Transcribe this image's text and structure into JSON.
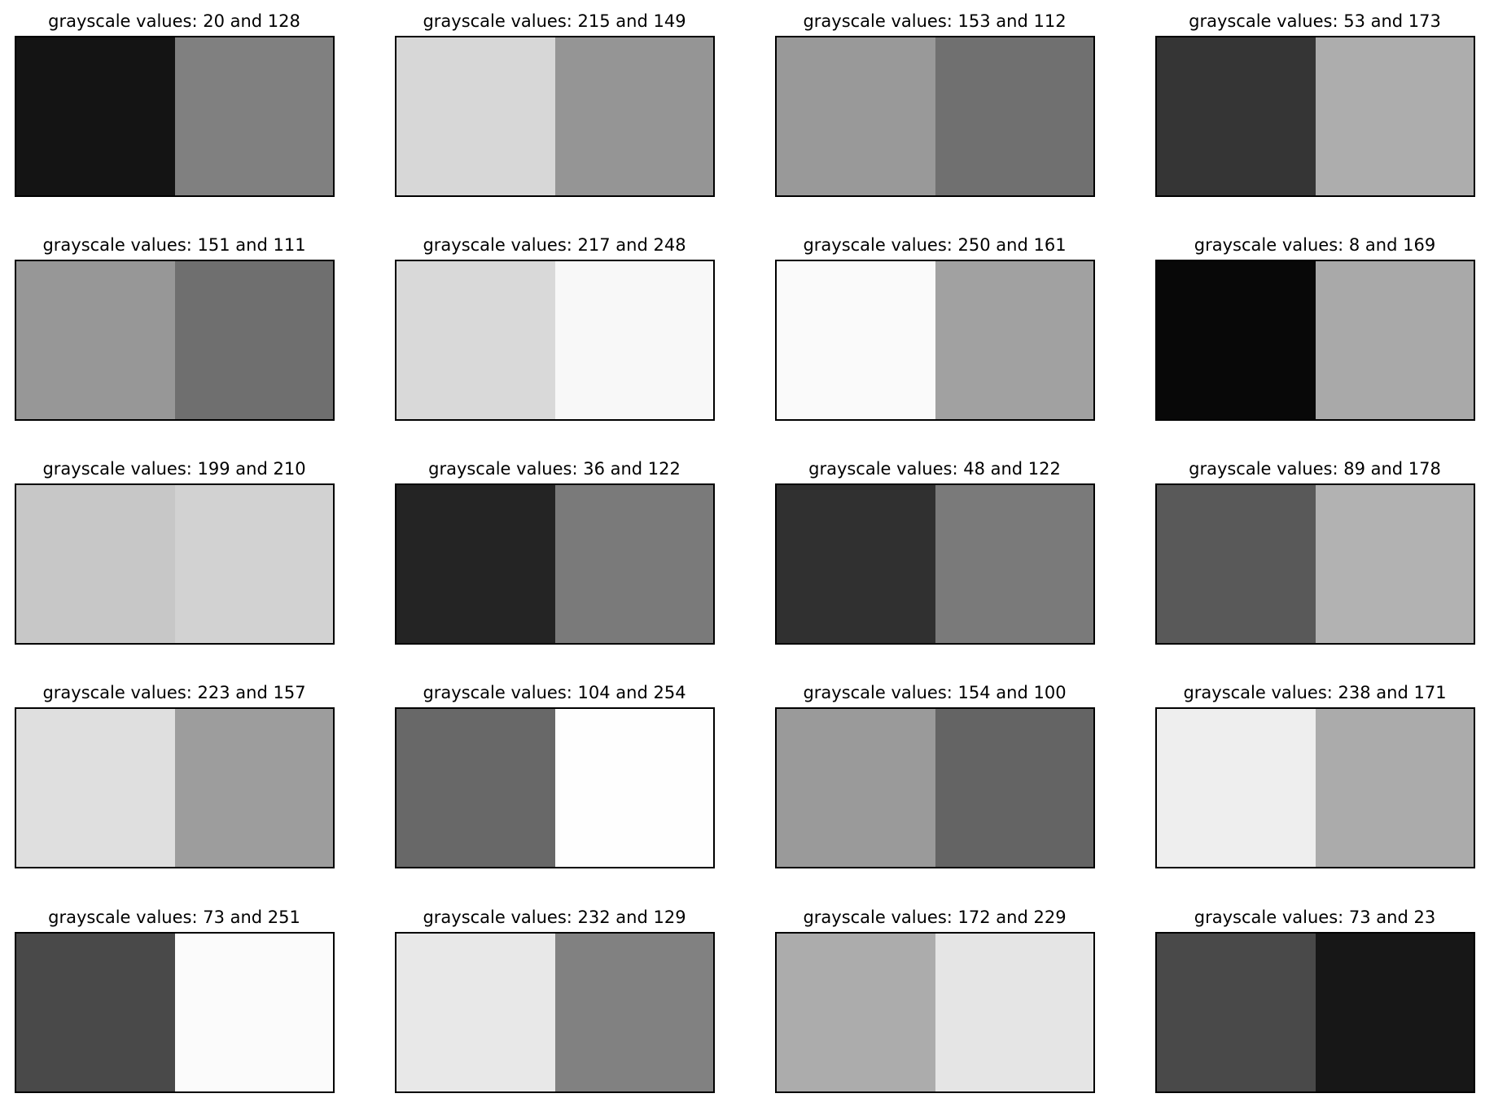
{
  "chart_data": {
    "type": "heatmap",
    "title_template": "grayscale values: {a} and {b}",
    "rows": 5,
    "cols": 4,
    "panels": [
      {
        "title": "grayscale values: 20 and 128",
        "values": [
          20,
          128
        ]
      },
      {
        "title": "grayscale values: 215 and 149",
        "values": [
          215,
          149
        ]
      },
      {
        "title": "grayscale values: 153 and 112",
        "values": [
          153,
          112
        ]
      },
      {
        "title": "grayscale values: 53 and 173",
        "values": [
          53,
          173
        ]
      },
      {
        "title": "grayscale values: 151 and 111",
        "values": [
          151,
          111
        ]
      },
      {
        "title": "grayscale values: 217 and 248",
        "values": [
          217,
          248
        ]
      },
      {
        "title": "grayscale values: 250 and 161",
        "values": [
          250,
          161
        ]
      },
      {
        "title": "grayscale values: 8 and 169",
        "values": [
          8,
          169
        ]
      },
      {
        "title": "grayscale values: 199 and 210",
        "values": [
          199,
          210
        ]
      },
      {
        "title": "grayscale values: 36 and 122",
        "values": [
          36,
          122
        ]
      },
      {
        "title": "grayscale values: 48 and 122",
        "values": [
          48,
          122
        ]
      },
      {
        "title": "grayscale values: 89 and 178",
        "values": [
          89,
          178
        ]
      },
      {
        "title": "grayscale values: 223 and 157",
        "values": [
          223,
          157
        ]
      },
      {
        "title": "grayscale values: 104 and 254",
        "values": [
          104,
          254
        ]
      },
      {
        "title": "grayscale values: 154 and 100",
        "values": [
          154,
          100
        ]
      },
      {
        "title": "grayscale values: 238 and 171",
        "values": [
          238,
          171
        ]
      },
      {
        "title": "grayscale values: 73 and 251",
        "values": [
          73,
          251
        ]
      },
      {
        "title": "grayscale values: 232 and 129",
        "values": [
          232,
          129
        ]
      },
      {
        "title": "grayscale values: 172 and 229",
        "values": [
          172,
          229
        ]
      },
      {
        "title": "grayscale values: 73 and 23",
        "values": [
          73,
          23
        ]
      }
    ],
    "frame_color": "#000000",
    "background": "#ffffff"
  }
}
